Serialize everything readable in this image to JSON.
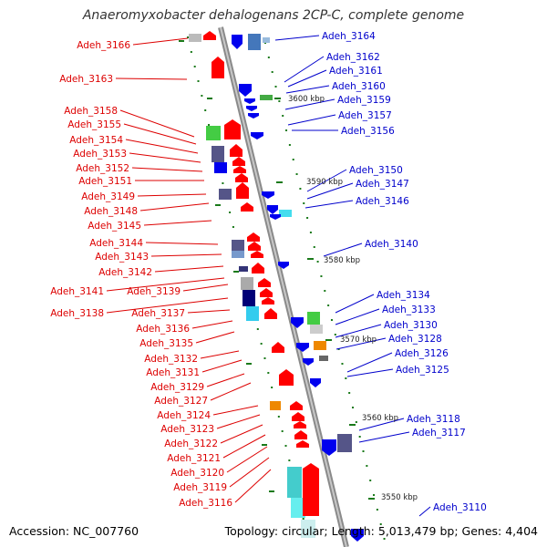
{
  "title": "Anaeromyxobacter dehalogenans 2CP-C, complete genome",
  "accession": "Accession: NC_007760",
  "summary": "Topology: circular; Length: 5,013,479 bp; Genes: 4,404",
  "colors": {
    "left_label": "#dd0000",
    "right_label": "#0000cc",
    "backbone": "#888888",
    "tick": "#1a7a1a",
    "forward": "#ff0000",
    "reverse": "#0000ee"
  },
  "scale_labels": [
    "3600 kbp",
    "3590 kbp",
    "3580 kbp",
    "3570 kbp",
    "3560 kbp",
    "3550 kbp"
  ],
  "left_genes": [
    "Adeh_3166",
    "Adeh_3163",
    "Adeh_3158",
    "Adeh_3155",
    "Adeh_3154",
    "Adeh_3153",
    "Adeh_3152",
    "Adeh_3151",
    "Adeh_3149",
    "Adeh_3148",
    "Adeh_3145",
    "Adeh_3144",
    "Adeh_3143",
    "Adeh_3142",
    "Adeh_3141",
    "Adeh_3139",
    "Adeh_3138",
    "Adeh_3137",
    "Adeh_3136",
    "Adeh_3135",
    "Adeh_3132",
    "Adeh_3131",
    "Adeh_3129",
    "Adeh_3127",
    "Adeh_3124",
    "Adeh_3123",
    "Adeh_3122",
    "Adeh_3121",
    "Adeh_3120",
    "Adeh_3119",
    "Adeh_3116"
  ],
  "right_genes": [
    "Adeh_3164",
    "Adeh_3162",
    "Adeh_3161",
    "Adeh_3160",
    "Adeh_3159",
    "Adeh_3157",
    "Adeh_3156",
    "Adeh_3150",
    "Adeh_3147",
    "Adeh_3146",
    "Adeh_3140",
    "Adeh_3134",
    "Adeh_3133",
    "Adeh_3130",
    "Adeh_3128",
    "Adeh_3126",
    "Adeh_3125",
    "Adeh_3118",
    "Adeh_3117",
    "Adeh_3110"
  ]
}
